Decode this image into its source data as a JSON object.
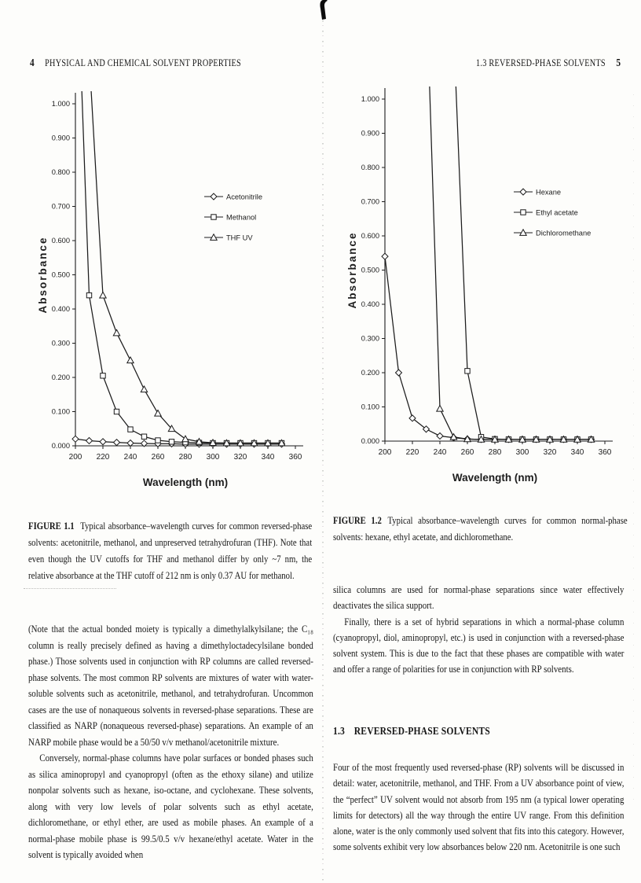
{
  "left_page": {
    "page_number": "4",
    "running_head": "PHYSICAL AND CHEMICAL SOLVENT PROPERTIES",
    "figure": {
      "label": "FIGURE 1.1",
      "caption": "Typical absorbance–wavelength curves for common reversed-phase solvents: acetonitrile, methanol, and unpreserved tetrahydrofuran (THF). Note that even though the UV cutoffs for THF and methanol differ by only ~7 nm, the relative absorbance at the THF cutoff of 212 nm is only 0.37 AU for methanol."
    },
    "paragraphs": [
      "(Note that the actual bonded moiety is typically a dimethylalkylsilane; the C₁₈ column is really precisely defined as having a dimethyloctadecylsilane bonded phase.) Those solvents used in conjunction with RP columns are called reversed-phase solvents. The most common RP solvents are mixtures of water with water-soluble solvents such as acetonitrile, methanol, and tetrahydrofuran. Uncommon cases are the use of nonaqueous solvents in reversed-phase separations. These are classified as NARP (nonaqueous reversed-phase) separations. An example of an NARP mobile phase would be a 50/50 v/v methanol/acetonitrile mixture.",
      "Conversely, normal-phase columns have polar surfaces or bonded phases such as silica aminopropyl and cyanopropyl (often as the ethoxy silane) and utilize nonpolar solvents such as hexane, iso-octane, and cyclohexane. These solvents, along with very low levels of polar solvents such as ethyl acetate, dichloromethane, or ethyl ether, are used as mobile phases. An example of a normal-phase mobile phase is 99.5/0.5 v/v hexane/ethyl acetate. Water in the solvent is typically avoided when"
    ]
  },
  "right_page": {
    "page_number": "5",
    "running_head": "1.3 REVERSED-PHASE SOLVENTS",
    "figure": {
      "label": "FIGURE 1.2",
      "caption": "Typical absorbance–wavelength curves for common normal-phase solvents: hexane, ethyl acetate, and dichloromethane."
    },
    "paragraphs_top": [
      "silica columns are used for normal-phase separations since water effectively deactivates the silica support.",
      "Finally, there is a set of hybrid separations in which a normal-phase column (cyanopropyl, diol, aminopropyl, etc.) is used in conjunction with a reversed-phase solvent system. This is due to the fact that these phases are compatible with water and offer a range of polarities for use in conjunction with RP solvents."
    ],
    "section_heading_number": "1.3",
    "section_heading_text": "REVERSED-PHASE SOLVENTS",
    "paragraphs_bottom": [
      "Four of the most frequently used reversed-phase (RP) solvents will be discussed in detail: water, acetonitrile, methanol, and THF. From a UV absorbance point of view, the “perfect” UV solvent would not absorb from 195 nm (a typical lower operating limits for detectors) all the way through the entire UV range. From this definition alone, water is the only commonly used solvent that fits into this category. However, some solvents exhibit very low absorbances below 220 nm. Acetonitrile is one such"
    ]
  },
  "chart_data": [
    {
      "type": "line",
      "title": "",
      "xlabel": "Wavelength (nm)",
      "ylabel": "Absorbance",
      "xlim": [
        200,
        360
      ],
      "ylim": [
        0,
        1.0
      ],
      "x_ticks": [
        200,
        220,
        240,
        260,
        280,
        300,
        320,
        340,
        360
      ],
      "y_ticks": [
        0,
        0.1,
        0.2,
        0.3,
        0.4,
        0.5,
        0.6,
        0.7,
        0.8,
        0.9,
        1.0
      ],
      "grid": false,
      "legend_position": "right-middle",
      "x": [
        200,
        210,
        220,
        230,
        240,
        250,
        260,
        270,
        280,
        290,
        300,
        310,
        320,
        330,
        340,
        350
      ],
      "series": [
        {
          "name": "Acetonitrile",
          "marker": "diamond",
          "values": [
            0.02,
            0.015,
            0.012,
            0.01,
            0.008,
            0.007,
            0.006,
            0.006,
            0.005,
            0.005,
            0.005,
            0.005,
            0.005,
            0.005,
            0.005,
            0.005
          ]
        },
        {
          "name": "Methanol",
          "marker": "square",
          "values": [
            1.56,
            0.44,
            0.205,
            0.1,
            0.048,
            0.027,
            0.016,
            0.012,
            0.01,
            0.009,
            0.008,
            0.008,
            0.008,
            0.008,
            0.008,
            0.008
          ]
        },
        {
          "name": "THF UV",
          "marker": "triangle",
          "values": [
            1.84,
            1.14,
            0.44,
            0.33,
            0.25,
            0.165,
            0.095,
            0.05,
            0.02,
            0.012,
            0.009,
            0.008,
            0.008,
            0.008,
            0.008,
            0.008
          ]
        }
      ]
    },
    {
      "type": "line",
      "title": "",
      "xlabel": "Wavelength (nm)",
      "ylabel": "Absorbance",
      "xlim": [
        200,
        360
      ],
      "ylim": [
        0,
        1.0
      ],
      "x_ticks": [
        200,
        220,
        240,
        260,
        280,
        300,
        320,
        340,
        360
      ],
      "y_ticks": [
        0,
        0.1,
        0.2,
        0.3,
        0.4,
        0.5,
        0.6,
        0.7,
        0.8,
        0.9,
        1.0
      ],
      "grid": false,
      "legend_position": "right-middle",
      "x": [
        200,
        210,
        220,
        230,
        240,
        250,
        260,
        270,
        280,
        290,
        300,
        310,
        320,
        330,
        340,
        350
      ],
      "series": [
        {
          "name": "Hexane",
          "marker": "diamond",
          "values": [
            0.54,
            0.2,
            0.067,
            0.035,
            0.015,
            0.01,
            0.006,
            0.005,
            0.005,
            0.005,
            0.005,
            0.005,
            0.005,
            0.005,
            0.005,
            0.005
          ]
        },
        {
          "name": "Ethyl acetate",
          "marker": "square",
          "values": [
            3.2,
            2.8,
            2.4,
            2.0,
            1.6,
            1.2,
            0.205,
            0.012,
            0.006,
            0.005,
            0.005,
            0.005,
            0.005,
            0.005,
            0.005,
            0.005
          ]
        },
        {
          "name": "Dichloromethane",
          "marker": "triangle",
          "values": [
            3.0,
            2.6,
            2.2,
            1.35,
            0.095,
            0.012,
            0.006,
            0.005,
            0.005,
            0.005,
            0.005,
            0.005,
            0.005,
            0.005,
            0.005,
            0.005
          ]
        }
      ]
    }
  ]
}
